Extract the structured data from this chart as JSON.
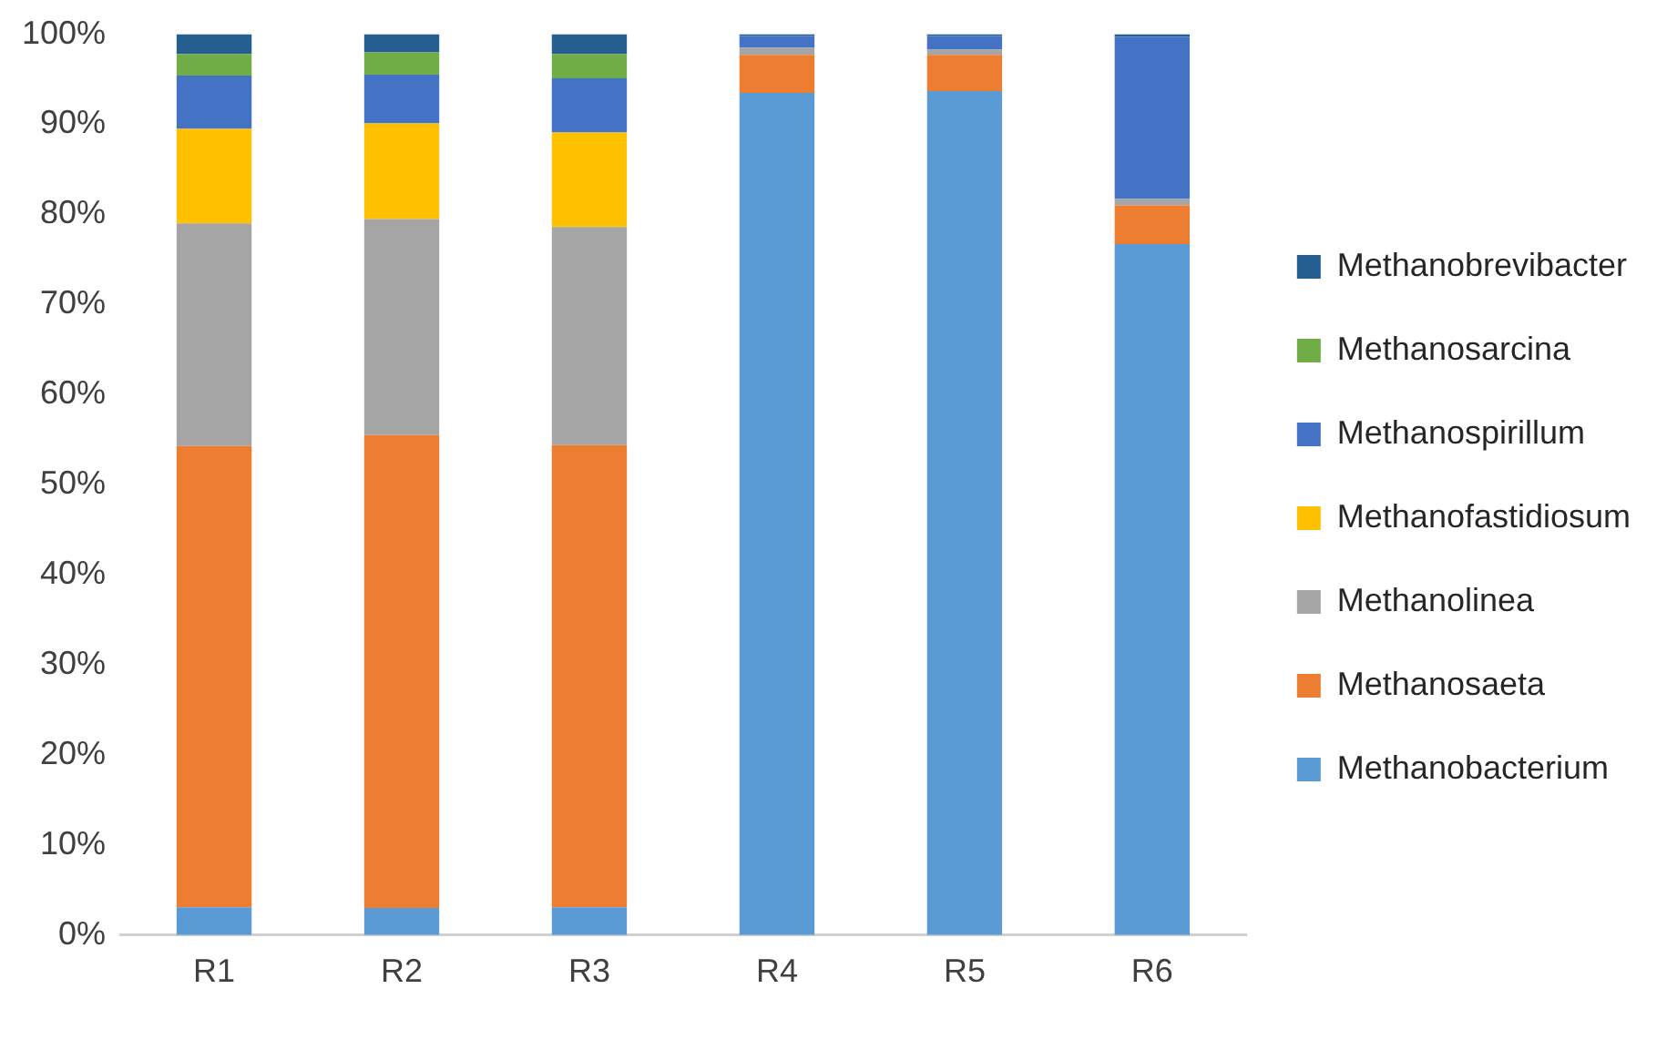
{
  "chart_data": {
    "type": "bar",
    "stacked": true,
    "categories": [
      "R1",
      "R2",
      "R3",
      "R4",
      "R5",
      "R6"
    ],
    "series": [
      {
        "name": "Methanobacterium",
        "color": "#5b9bd5",
        "values": [
          3.1,
          3.0,
          3.1,
          93.5,
          93.7,
          76.7
        ]
      },
      {
        "name": "Methanosaeta",
        "color": "#ed7d31",
        "values": [
          51.2,
          52.5,
          51.3,
          4.2,
          4.0,
          4.3
        ]
      },
      {
        "name": "Methanolinea",
        "color": "#a5a5a5",
        "values": [
          24.7,
          24.0,
          24.2,
          0.8,
          0.6,
          0.7
        ]
      },
      {
        "name": "Methanofastidiosum",
        "color": "#ffc000",
        "values": [
          10.5,
          10.6,
          10.5,
          0,
          0,
          0
        ]
      },
      {
        "name": "Methanospirillum",
        "color": "#4472c4",
        "values": [
          5.9,
          5.4,
          6.0,
          1.3,
          1.5,
          18.0
        ]
      },
      {
        "name": "Methanosarcina",
        "color": "#70ad47",
        "values": [
          2.4,
          2.5,
          2.7,
          0,
          0,
          0
        ]
      },
      {
        "name": "Methanobrevibacter",
        "color": "#255e91",
        "values": [
          2.2,
          2.0,
          2.2,
          0.2,
          0.2,
          0.3
        ]
      }
    ],
    "ylim": [
      0,
      100
    ],
    "yticks": [
      {
        "value": 0,
        "label": "0%"
      },
      {
        "value": 10,
        "label": "10%"
      },
      {
        "value": 20,
        "label": "20%"
      },
      {
        "value": 30,
        "label": "30%"
      },
      {
        "value": 40,
        "label": "40%"
      },
      {
        "value": 50,
        "label": "50%"
      },
      {
        "value": 60,
        "label": "60%"
      },
      {
        "value": 70,
        "label": "70%"
      },
      {
        "value": 80,
        "label": "80%"
      },
      {
        "value": 90,
        "label": "90%"
      },
      {
        "value": 100,
        "label": "100%"
      }
    ],
    "grid": false,
    "legend": "right"
  }
}
